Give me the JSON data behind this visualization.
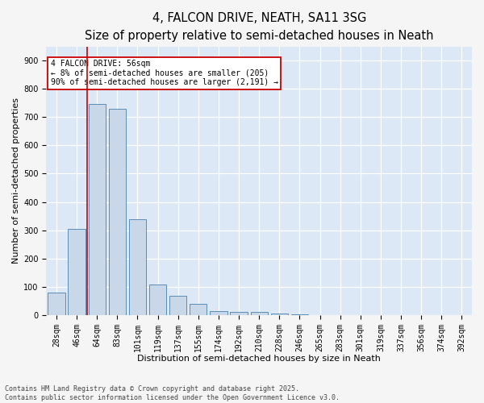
{
  "title1": "4, FALCON DRIVE, NEATH, SA11 3SG",
  "title2": "Size of property relative to semi-detached houses in Neath",
  "xlabel": "Distribution of semi-detached houses by size in Neath",
  "ylabel": "Number of semi-detached properties",
  "bar_labels": [
    "28sqm",
    "46sqm",
    "64sqm",
    "83sqm",
    "101sqm",
    "119sqm",
    "137sqm",
    "155sqm",
    "174sqm",
    "192sqm",
    "210sqm",
    "228sqm",
    "246sqm",
    "265sqm",
    "283sqm",
    "301sqm",
    "319sqm",
    "337sqm",
    "356sqm",
    "374sqm",
    "392sqm"
  ],
  "bar_values": [
    80,
    305,
    745,
    730,
    340,
    108,
    68,
    40,
    15,
    12,
    10,
    5,
    3,
    0,
    0,
    0,
    0,
    0,
    0,
    0,
    0
  ],
  "bar_color": "#c8d8e8",
  "bar_edge_color": "#5b8db8",
  "background_color": "#dce8f5",
  "grid_color": "#ffffff",
  "vline_color": "#cc0000",
  "annotation_text": "4 FALCON DRIVE: 56sqm\n← 8% of semi-detached houses are smaller (205)\n90% of semi-detached houses are larger (2,191) →",
  "annotation_box_color": "#cc0000",
  "ylim": [
    0,
    950
  ],
  "yticks": [
    0,
    100,
    200,
    300,
    400,
    500,
    600,
    700,
    800,
    900
  ],
  "footer": "Contains HM Land Registry data © Crown copyright and database right 2025.\nContains public sector information licensed under the Open Government Licence v3.0.",
  "title1_fontsize": 10.5,
  "title2_fontsize": 9.5,
  "axis_fontsize": 8,
  "tick_fontsize": 7,
  "footer_fontsize": 6,
  "annot_fontsize": 7
}
